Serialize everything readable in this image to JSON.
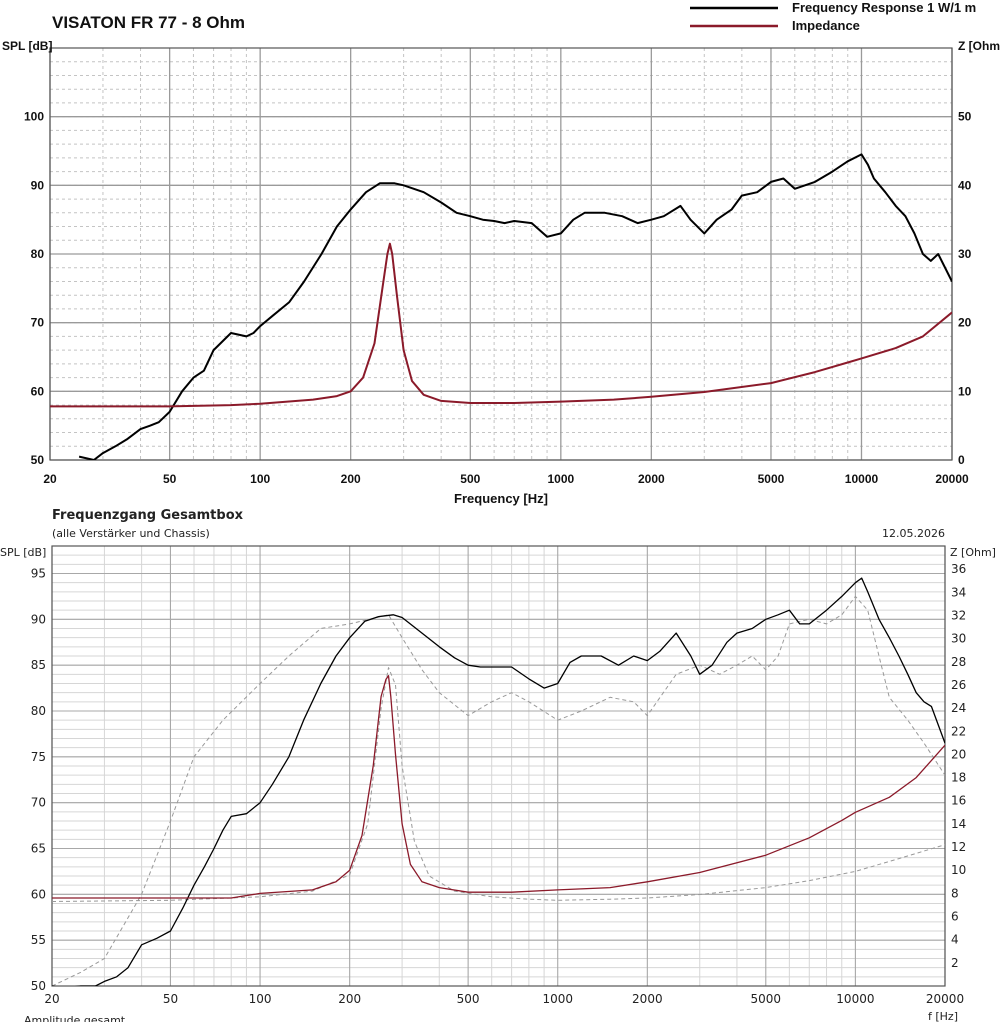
{
  "chart_data": [
    {
      "type": "line",
      "title": "VISATON FR 77 - 8 Ohm",
      "xlabel": "Frequency [Hz]",
      "ylabel": "SPL [dB]",
      "ylabel_right": "Z [Ohm]",
      "x_scale": "log",
      "xlim": [
        20,
        20000
      ],
      "ylim": [
        50,
        110
      ],
      "ylim_right": [
        0,
        60
      ],
      "x_ticks": [
        "20",
        "50",
        "100",
        "200",
        "500",
        "1000",
        "2000",
        "5000",
        "10000",
        "20000"
      ],
      "y_ticks": [
        "50",
        "60",
        "70",
        "80",
        "90",
        "100"
      ],
      "y_ticks_right": [
        "0",
        "10",
        "20",
        "30",
        "40",
        "50"
      ],
      "grid": true,
      "legend_position": "top-right",
      "series": [
        {
          "name": "Frequency Response 1 W/1 m",
          "color": "#000000",
          "axis": "left",
          "x": [
            25,
            28,
            30,
            33,
            36,
            40,
            43,
            46,
            50,
            55,
            60,
            65,
            70,
            80,
            90,
            95,
            100,
            110,
            125,
            140,
            160,
            180,
            200,
            225,
            250,
            280,
            300,
            350,
            400,
            450,
            500,
            550,
            600,
            650,
            700,
            800,
            900,
            1000,
            1100,
            1200,
            1400,
            1600,
            1800,
            2000,
            2200,
            2500,
            2700,
            3000,
            3300,
            3700,
            4000,
            4500,
            5000,
            5500,
            6000,
            7000,
            8000,
            9000,
            10000,
            10500,
            11000,
            12000,
            13000,
            14000,
            15000,
            16000,
            17000,
            18000,
            20000
          ],
          "y": [
            50.5,
            50,
            51,
            52,
            53,
            54.5,
            55,
            55.5,
            57,
            60,
            62,
            63,
            66,
            68.5,
            68,
            68.5,
            69.5,
            71,
            73,
            76,
            80,
            84,
            86.5,
            89,
            90.3,
            90.3,
            90,
            89,
            87.5,
            86,
            85.5,
            85,
            84.8,
            84.5,
            84.8,
            84.5,
            82.5,
            83,
            85,
            86,
            86,
            85.5,
            84.5,
            85,
            85.5,
            87,
            85,
            83,
            85,
            86.5,
            88.5,
            89,
            90.5,
            91,
            89.5,
            90.5,
            92,
            93.5,
            94.5,
            93,
            91,
            89,
            87,
            85.5,
            83,
            80,
            79,
            80,
            76
          ]
        },
        {
          "name": "Impedance",
          "color": "#8b1a2a",
          "axis": "right",
          "x": [
            20,
            30,
            50,
            80,
            100,
            150,
            180,
            200,
            220,
            240,
            255,
            265,
            270,
            275,
            285,
            300,
            320,
            350,
            400,
            500,
            700,
            1000,
            1500,
            2000,
            3000,
            5000,
            7000,
            9000,
            10000,
            13000,
            16000,
            20000
          ],
          "y": [
            7.8,
            7.8,
            7.8,
            8,
            8.2,
            8.8,
            9.3,
            10,
            12,
            17,
            25,
            30,
            31.5,
            30,
            24,
            16,
            11.5,
            9.5,
            8.6,
            8.3,
            8.3,
            8.5,
            8.8,
            9.2,
            9.9,
            11.2,
            12.8,
            14.2,
            14.8,
            16.3,
            18,
            21.5
          ]
        }
      ]
    },
    {
      "type": "line",
      "title": "Frequenzgang Gesamtbox",
      "subtitle": "(alle Verstärker und Chassis)",
      "date": "12.05.2026",
      "xlabel": "f [Hz]",
      "ylabel": "SPL [dB]",
      "ylabel_right": "Z [Ohm]",
      "footer": "Amplitude gesamt",
      "x_scale": "log",
      "xlim": [
        20,
        20000
      ],
      "ylim": [
        50,
        98
      ],
      "ylim_right": [
        0,
        38
      ],
      "x_ticks": [
        "20",
        "50",
        "100",
        "200",
        "500",
        "1000",
        "2000",
        "5000",
        "10000",
        "20000"
      ],
      "y_ticks": [
        "50",
        "55",
        "60",
        "65",
        "70",
        "75",
        "80",
        "85",
        "90",
        "95"
      ],
      "y_ticks_right": [
        "2",
        "4",
        "6",
        "8",
        "10",
        "12",
        "14",
        "16",
        "18",
        "20",
        "22",
        "24",
        "26",
        "28",
        "30",
        "32",
        "34",
        "36"
      ],
      "grid": true,
      "series": [
        {
          "color": "#000000",
          "style": "solid",
          "axis": "left",
          "x": [
            20,
            22,
            25,
            28,
            30,
            33,
            36,
            40,
            45,
            50,
            55,
            60,
            65,
            70,
            75,
            80,
            90,
            100,
            110,
            125,
            140,
            160,
            180,
            200,
            225,
            250,
            280,
            300,
            350,
            400,
            450,
            500,
            550,
            600,
            700,
            800,
            900,
            1000,
            1100,
            1200,
            1400,
            1600,
            1800,
            2000,
            2200,
            2500,
            2800,
            3000,
            3300,
            3700,
            4000,
            4500,
            5000,
            5500,
            6000,
            6500,
            7000,
            8000,
            9000,
            10000,
            10500,
            11000,
            12000,
            13000,
            14000,
            15000,
            16000,
            17000,
            18000,
            20000
          ],
          "y": [
            50,
            49.8,
            50,
            50,
            50.5,
            51,
            52,
            54.5,
            55.2,
            56,
            58.5,
            61,
            63,
            65,
            67,
            68.5,
            68.8,
            70,
            72,
            75,
            79,
            83,
            86,
            88,
            89.8,
            90.3,
            90.5,
            90.2,
            88.5,
            87,
            85.8,
            85,
            84.8,
            84.8,
            84.8,
            83.5,
            82.5,
            83,
            85.3,
            86,
            86,
            85,
            86,
            85.5,
            86.5,
            88.5,
            86,
            84,
            85,
            87.5,
            88.5,
            89,
            90,
            90.5,
            91,
            89.5,
            89.5,
            91,
            92.5,
            94,
            94.5,
            93,
            90,
            88,
            86,
            84,
            82,
            81,
            80.5,
            76.5
          ]
        },
        {
          "color": "#8b1a2a",
          "style": "solid",
          "axis": "right",
          "x": [
            20,
            50,
            80,
            100,
            150,
            180,
            200,
            220,
            240,
            255,
            265,
            270,
            275,
            285,
            300,
            320,
            350,
            400,
            500,
            700,
            1000,
            1500,
            2000,
            3000,
            5000,
            7000,
            9000,
            10000,
            13000,
            16000,
            20000
          ],
          "y": [
            7.6,
            7.6,
            7.6,
            8,
            8.3,
            9,
            10,
            13,
            19,
            25,
            26.5,
            26.8,
            25,
            20,
            14,
            10.5,
            9,
            8.5,
            8.1,
            8.1,
            8.3,
            8.5,
            9,
            9.8,
            11.3,
            12.8,
            14.3,
            15,
            16.3,
            18,
            20.8
          ]
        },
        {
          "color": "#999999",
          "style": "dashed",
          "axis": "left",
          "x": [
            20,
            25,
            30,
            40,
            50,
            60,
            75,
            100,
            125,
            160,
            200,
            270,
            300,
            350,
            400,
            500,
            600,
            700,
            800,
            1000,
            1200,
            1500,
            1800,
            2000,
            2500,
            3000,
            3500,
            4000,
            4500,
            5000,
            5500,
            6000,
            7000,
            8000,
            9000,
            10000,
            11000,
            12000,
            13000,
            15000,
            17000,
            20000
          ],
          "y": [
            50,
            51.5,
            53,
            60,
            68,
            75,
            79,
            83,
            86,
            89,
            89.5,
            90.5,
            88,
            84.5,
            82,
            79.5,
            81,
            82,
            81,
            79,
            80,
            81.5,
            81,
            79.5,
            84,
            85,
            84,
            85,
            86,
            84.5,
            86,
            89.5,
            90,
            89.5,
            90.5,
            92.5,
            91,
            86,
            81.5,
            79,
            76.5,
            73
          ]
        },
        {
          "color": "#999999",
          "style": "dashed",
          "axis": "right",
          "x": [
            20,
            50,
            100,
            150,
            200,
            230,
            255,
            270,
            285,
            300,
            330,
            370,
            450,
            600,
            800,
            1000,
            1500,
            2000,
            3000,
            5000,
            7000,
            10000,
            14000,
            20000
          ],
          "y": [
            7.3,
            7.4,
            7.7,
            8.2,
            9.6,
            14,
            24,
            27.5,
            26,
            19,
            12.5,
            9.5,
            8.2,
            7.7,
            7.5,
            7.4,
            7.5,
            7.6,
            7.9,
            8.5,
            9.1,
            9.9,
            11,
            12.2
          ]
        }
      ]
    }
  ]
}
